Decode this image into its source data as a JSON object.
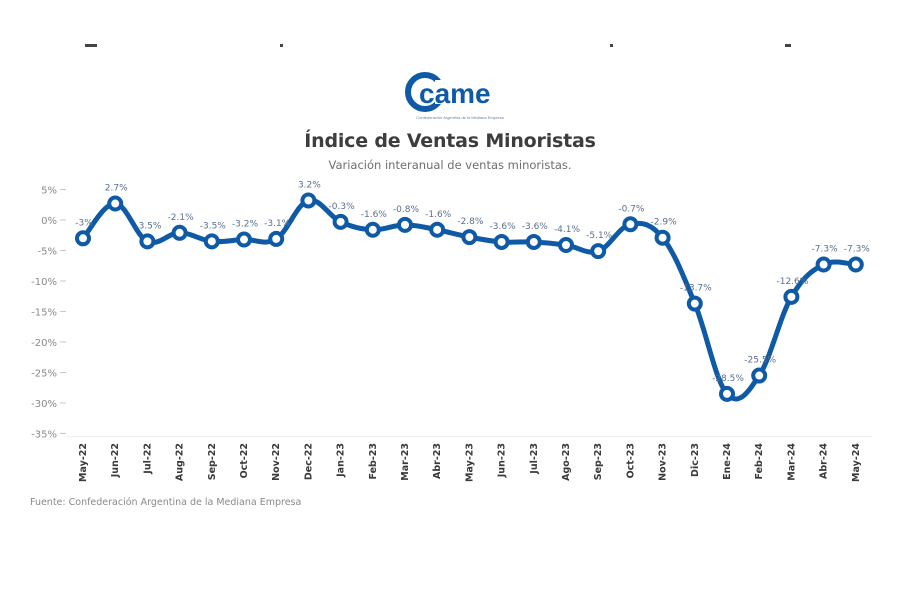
{
  "header": {
    "logo_text": "came",
    "logo_subtitle": "Confederación Argentina de la Mediana Empresa",
    "title": "Índice de Ventas Minoristas",
    "subtitle": "Variación interanual de ventas minoristas."
  },
  "footer": {
    "source": "Fuente: Confederación Argentina de la Mediana Empresa"
  },
  "colors": {
    "line": "#0e5aa7",
    "marker_fill": "#ffffff",
    "label": "#5a6f8f",
    "axis_text": "#8a8a8a",
    "category_text": "#3a3a3a"
  },
  "chart_data": {
    "type": "line",
    "title": "Índice de Ventas Minoristas",
    "subtitle": "Variación interanual de ventas minoristas.",
    "xlabel": "",
    "ylabel": "",
    "ylim": [
      -35,
      5
    ],
    "yticks": [
      "5%",
      "0%",
      "-5%",
      "-10%",
      "-15%",
      "-20%",
      "-25%",
      "-30%",
      "-35%"
    ],
    "ytick_values": [
      5,
      0,
      -5,
      -10,
      -15,
      -20,
      -25,
      -30,
      -35
    ],
    "grid": false,
    "legend": "none",
    "categories": [
      "May-22",
      "Jun-22",
      "Jul-22",
      "Aug-22",
      "Sep-22",
      "Oct-22",
      "Nov-22",
      "Dec-22",
      "Jan-23",
      "Feb-23",
      "Mar-23",
      "Abr-23",
      "May-23",
      "Jun-23",
      "Jul-23",
      "Ago-23",
      "Sep-23",
      "Oct-23",
      "Nov-23",
      "Dic-23",
      "Ene-24",
      "Feb-24",
      "Mar-24",
      "Abr-24",
      "May-24"
    ],
    "series": [
      {
        "name": "Variación interanual",
        "values": [
          -3,
          2.7,
          -3.5,
          -2.1,
          -3.5,
          -3.2,
          -3.1,
          3.2,
          -0.3,
          -1.6,
          -0.8,
          -1.6,
          -2.8,
          -3.6,
          -3.6,
          -4.1,
          -5.1,
          -0.7,
          -2.9,
          -13.7,
          -28.5,
          -25.5,
          -12.6,
          -7.3,
          -7.3
        ],
        "labels": [
          "-3%",
          "2.7%",
          "-3.5%",
          "-2.1%",
          "-3.5%",
          "-3.2%",
          "-3.1%",
          "3.2%",
          "-0.3%",
          "-1.6%",
          "-0.8%",
          "-1.6%",
          "-2.8%",
          "-3.6%",
          "-3.6%",
          "-4.1%",
          "-5.1%",
          "-0.7%",
          "-2.9%",
          "-13.7%",
          "-28.5%",
          "-25.5%",
          "-12.6%",
          "-7.3%",
          "-7.3%"
        ]
      }
    ],
    "source": "Fuente: Confederación Argentina de la Mediana Empresa"
  }
}
